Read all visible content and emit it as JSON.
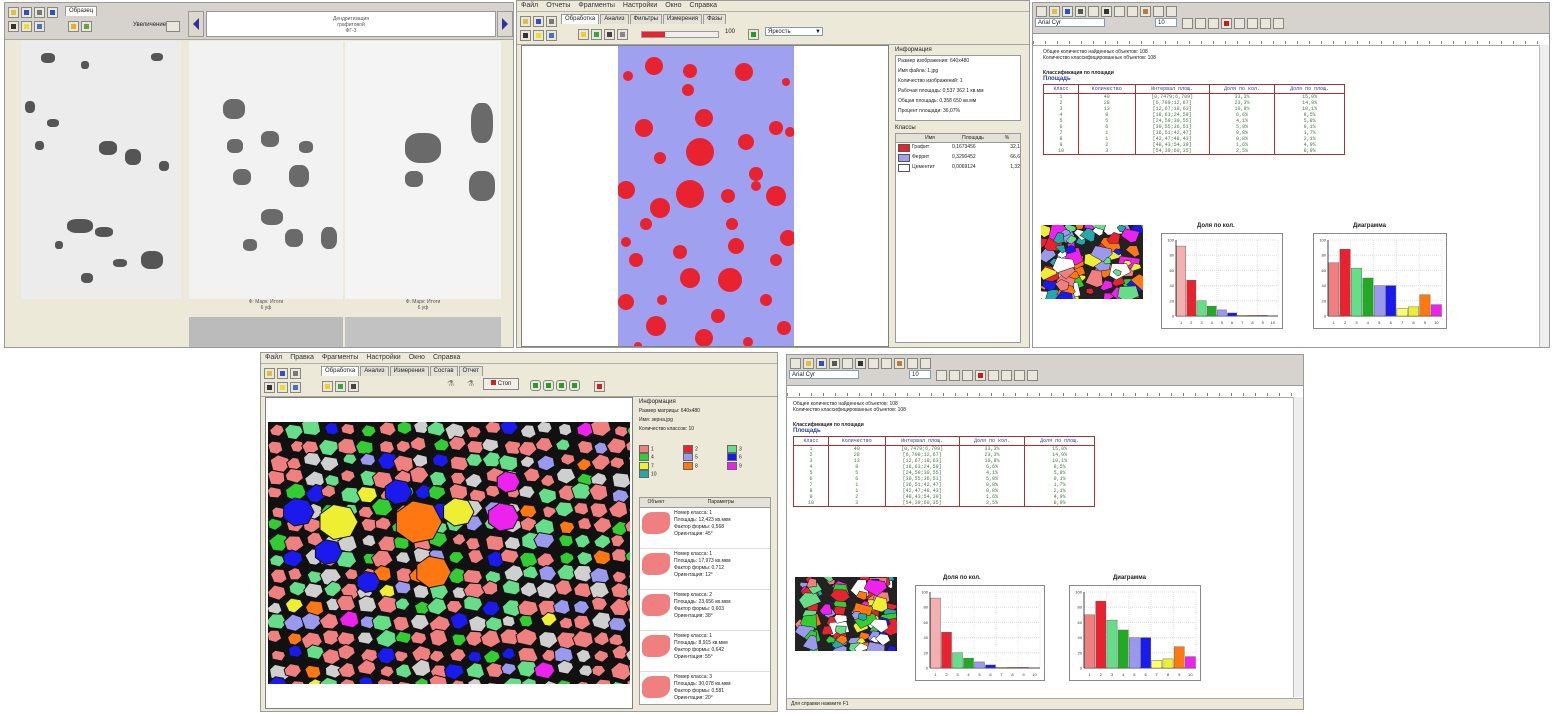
{
  "colors": {
    "phase_red": "#e8222e",
    "phase_lilac": "#a0a0f0",
    "grain_pink": "#f08080",
    "grain_green": "#33cc33",
    "grain_light_green": "#66dd88",
    "grain_blue": "#1a1aee",
    "grain_periwinkle": "#9999ee",
    "grain_orange": "#ff7711",
    "grain_yellow": "#eeee33",
    "grain_magenta": "#ee22ee",
    "report_header": "#2a3f9f",
    "report_table_border": "#b03030",
    "report_table_text": "#4a7a4a"
  },
  "window1": {
    "tab_label": "Образец",
    "field_label": "Увеличение",
    "image_header_line1": "Дендритизация",
    "image_header_line2": "графитовой",
    "image_header_line3": "ФГ-3",
    "caption_left_line1": "Ф: Марк: Итоги",
    "caption_left_line2": "6 уф",
    "caption_right_line1": "Ф: Марк: Итоги",
    "caption_right_line2": "6 уф"
  },
  "window2": {
    "menu": [
      "Файл",
      "Отчеты",
      "Фрагменты",
      "Настройки",
      "Окно",
      "Справка"
    ],
    "tabs": [
      "Обработка",
      "Анализ",
      "Фильтры",
      "Измерения",
      "Фазы"
    ],
    "zoom_value": "100",
    "select_value": "Яркость",
    "info_title": "Информация",
    "info_lines": [
      "Размер изображения: 640x480",
      "Имя файла: 1.jpg",
      "Количество изображений: 1",
      "Рабочая площадь: 0,537 362 1 кв.мм",
      "Общая площадь: 0,358 650 кв.мм",
      "Процент площади: 36,07%"
    ],
    "classes_title": "Классы",
    "classes_headers": [
      "Имя",
      "Площадь",
      "%"
    ],
    "classes_rows": [
      {
        "name": "Графит",
        "area": "0,1673456",
        "pct": "32,1",
        "color": "#e8222e"
      },
      {
        "name": "Феррит",
        "area": "0,3290452",
        "pct": "66,6",
        "color": "#a0a0f0"
      },
      {
        "name": "Цементит",
        "area": "0,0069124",
        "pct": "1,32",
        "color": "#ffffff"
      }
    ]
  },
  "report1": {
    "dropdown_value": "Arial Cyr",
    "size_value": "10",
    "intro_line1": "Общее количество найденных объектов: 108",
    "intro_line2": "Количество классифицированных объектов: 108",
    "section_title": "Классификация по площади",
    "section_subtitle": "Площадь",
    "table_headers": [
      "Класс",
      "Количество",
      "Интервал площ.",
      "Доля по кол.",
      "Доля по площ."
    ],
    "table_rows": [
      [
        "1",
        "40",
        "[0,7479;6,709]",
        "33,3%",
        "15,0%"
      ],
      [
        "2",
        "28",
        "[6,709;12,67]",
        "23,3%",
        "14,9%"
      ],
      [
        "3",
        "13",
        "[12,67;18,63]",
        "10,8%",
        "10,1%"
      ],
      [
        "4",
        "8",
        "[18,63;24,59]",
        "6,6%",
        "8,5%"
      ],
      [
        "5",
        "5",
        "[24,59;30,55]",
        "4,1%",
        "5,8%"
      ],
      [
        "6",
        "6",
        "[30,55;36,51]",
        "5,0%",
        "9,1%"
      ],
      [
        "7",
        "1",
        "[36,51;42,47]",
        "0,8%",
        "1,7%"
      ],
      [
        "8",
        "1",
        "[42,47;48,43]",
        "0,8%",
        "2,1%"
      ],
      [
        "9",
        "2",
        "[48,43;54,39]",
        "1,6%",
        "4,9%"
      ],
      [
        "10",
        "3",
        "[54,39;60,35]",
        "2,5%",
        "8,9%"
      ]
    ],
    "chart1_title": "Доля по кол.",
    "chart2_title": "Диаграмма"
  },
  "window4": {
    "menu": [
      "Файл",
      "Правка",
      "Фрагменты",
      "Настройки",
      "Окно",
      "Справка"
    ],
    "tabs": [
      "Обработка",
      "Анализ",
      "Измерения",
      "Состав",
      "Отчет"
    ],
    "stop_label": "Стоп",
    "info_title": "Информация",
    "info_lines": [
      "Размер матрицы: 640x480",
      "Имя: зерна.jpg",
      "Количество классов: 10"
    ],
    "legend_items": [
      "1",
      "2",
      "3",
      "4",
      "5",
      "6",
      "7",
      "8",
      "9",
      "10"
    ],
    "list_headers": [
      "Объект",
      "Параметры"
    ],
    "list_items": [
      [
        "Номер класса: 1",
        "Площадь: 12,423 кв.мкм",
        "Фактор формы: 0,568",
        "Ориентация: 45°"
      ],
      [
        "Номер класса: 1",
        "Площадь: 17,973 кв.мкм",
        "Фактор формы: 0,712",
        "Ориентация: 12°"
      ],
      [
        "Номер класса: 2",
        "Площадь: 23,656 кв.мкм",
        "Фактор формы: 0,603",
        "Ориентация: 38°"
      ],
      [
        "Номер класса: 1",
        "Площадь: 8,915 кв.мкм",
        "Фактор формы: 0,642",
        "Ориентация: 55°"
      ],
      [
        "Номер класса: 3",
        "Площадь: 30,078 кв.мкм",
        "Фактор формы: 0,581",
        "Ориентация: 20°"
      ]
    ]
  },
  "report2": {
    "dropdown_value": "Arial Cyr",
    "size_value": "10",
    "intro_line1": "Общее количество найденных объектов: 108",
    "intro_line2": "Количество классифицированных объектов: 108",
    "section_title": "Классификация по площади",
    "section_subtitle": "Площадь",
    "chart1_title": "Доля по кол.",
    "chart2_title": "Диаграмма",
    "status_text": "Для справки нажмите F1"
  },
  "chart_data": [
    {
      "type": "bar",
      "title": "Доля по кол.",
      "categories": [
        "1",
        "2",
        "3",
        "4",
        "5",
        "6",
        "7",
        "8",
        "9",
        "10"
      ],
      "values": [
        92,
        47,
        20,
        13,
        8,
        4,
        1,
        1,
        1,
        0
      ],
      "ylim": [
        0,
        100
      ]
    },
    {
      "type": "bar",
      "title": "Диаграмма",
      "categories": [
        "1",
        "2",
        "3",
        "4",
        "5",
        "6",
        "7",
        "8",
        "9",
        "10"
      ],
      "values": [
        70,
        88,
        63,
        50,
        40,
        40,
        10,
        12,
        28,
        15
      ],
      "colors": [
        "#f08080",
        "#e8222e",
        "#66dd88",
        "#22aa22",
        "#9999ee",
        "#1a1aee",
        "#ffff66",
        "#eeee33",
        "#ff7711",
        "#ee22ee"
      ],
      "ylim": [
        0,
        100
      ]
    }
  ]
}
